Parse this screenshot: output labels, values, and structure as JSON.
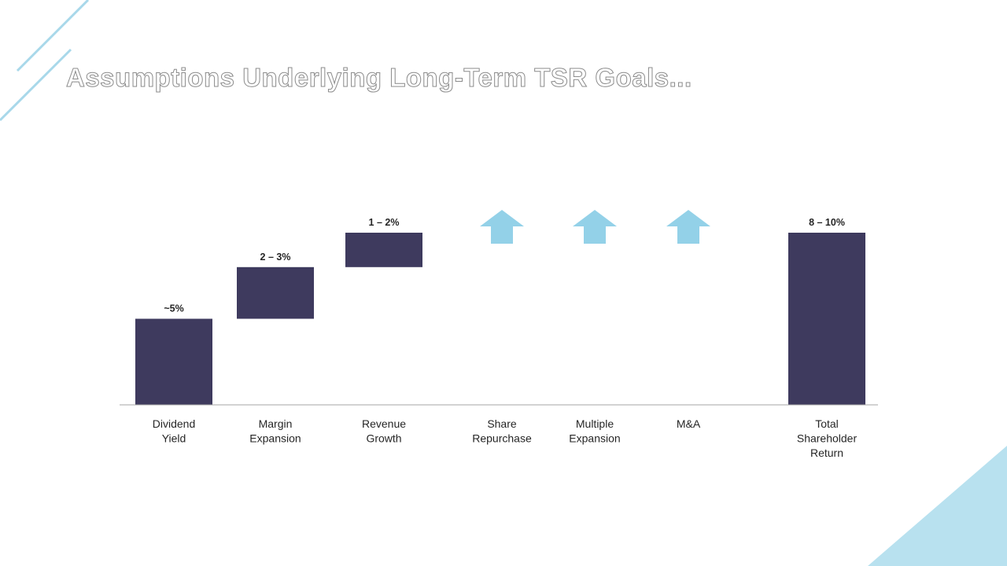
{
  "slide": {
    "title": "Assumptions Underlying Long-Term TSR Goals..."
  },
  "colors": {
    "bar": "#3e3a5e",
    "arrow": "#93d1e8",
    "decor": "#a8d8ea",
    "decor_triangle": "#b8e1ef",
    "axis": "#a6a6a6"
  },
  "chart_data": {
    "type": "bar",
    "subtype": "waterfall",
    "categories": [
      [
        "Dividend",
        "Yield"
      ],
      [
        "Margin",
        "Expansion"
      ],
      [
        "Revenue",
        "Growth"
      ],
      [
        "Share",
        "Repurchase"
      ],
      [
        "Multiple",
        "Expansion"
      ],
      [
        "M&A"
      ],
      [
        "Total",
        "Shareholder",
        "Return"
      ]
    ],
    "bars": [
      {
        "kind": "segment",
        "start": 0,
        "end": 5,
        "label": "~5%"
      },
      {
        "kind": "segment",
        "start": 5,
        "end": 8,
        "label": "2 – 3%"
      },
      {
        "kind": "segment",
        "start": 8,
        "end": 10,
        "label": "1 – 2%"
      },
      {
        "kind": "arrow",
        "label": ""
      },
      {
        "kind": "arrow",
        "label": ""
      },
      {
        "kind": "arrow",
        "label": ""
      },
      {
        "kind": "segment",
        "start": 0,
        "end": 10,
        "label": "8 – 10%"
      }
    ],
    "ylim": [
      0,
      10
    ],
    "title": "",
    "xlabel": "",
    "ylabel": "",
    "grid": false,
    "legend": "none"
  }
}
